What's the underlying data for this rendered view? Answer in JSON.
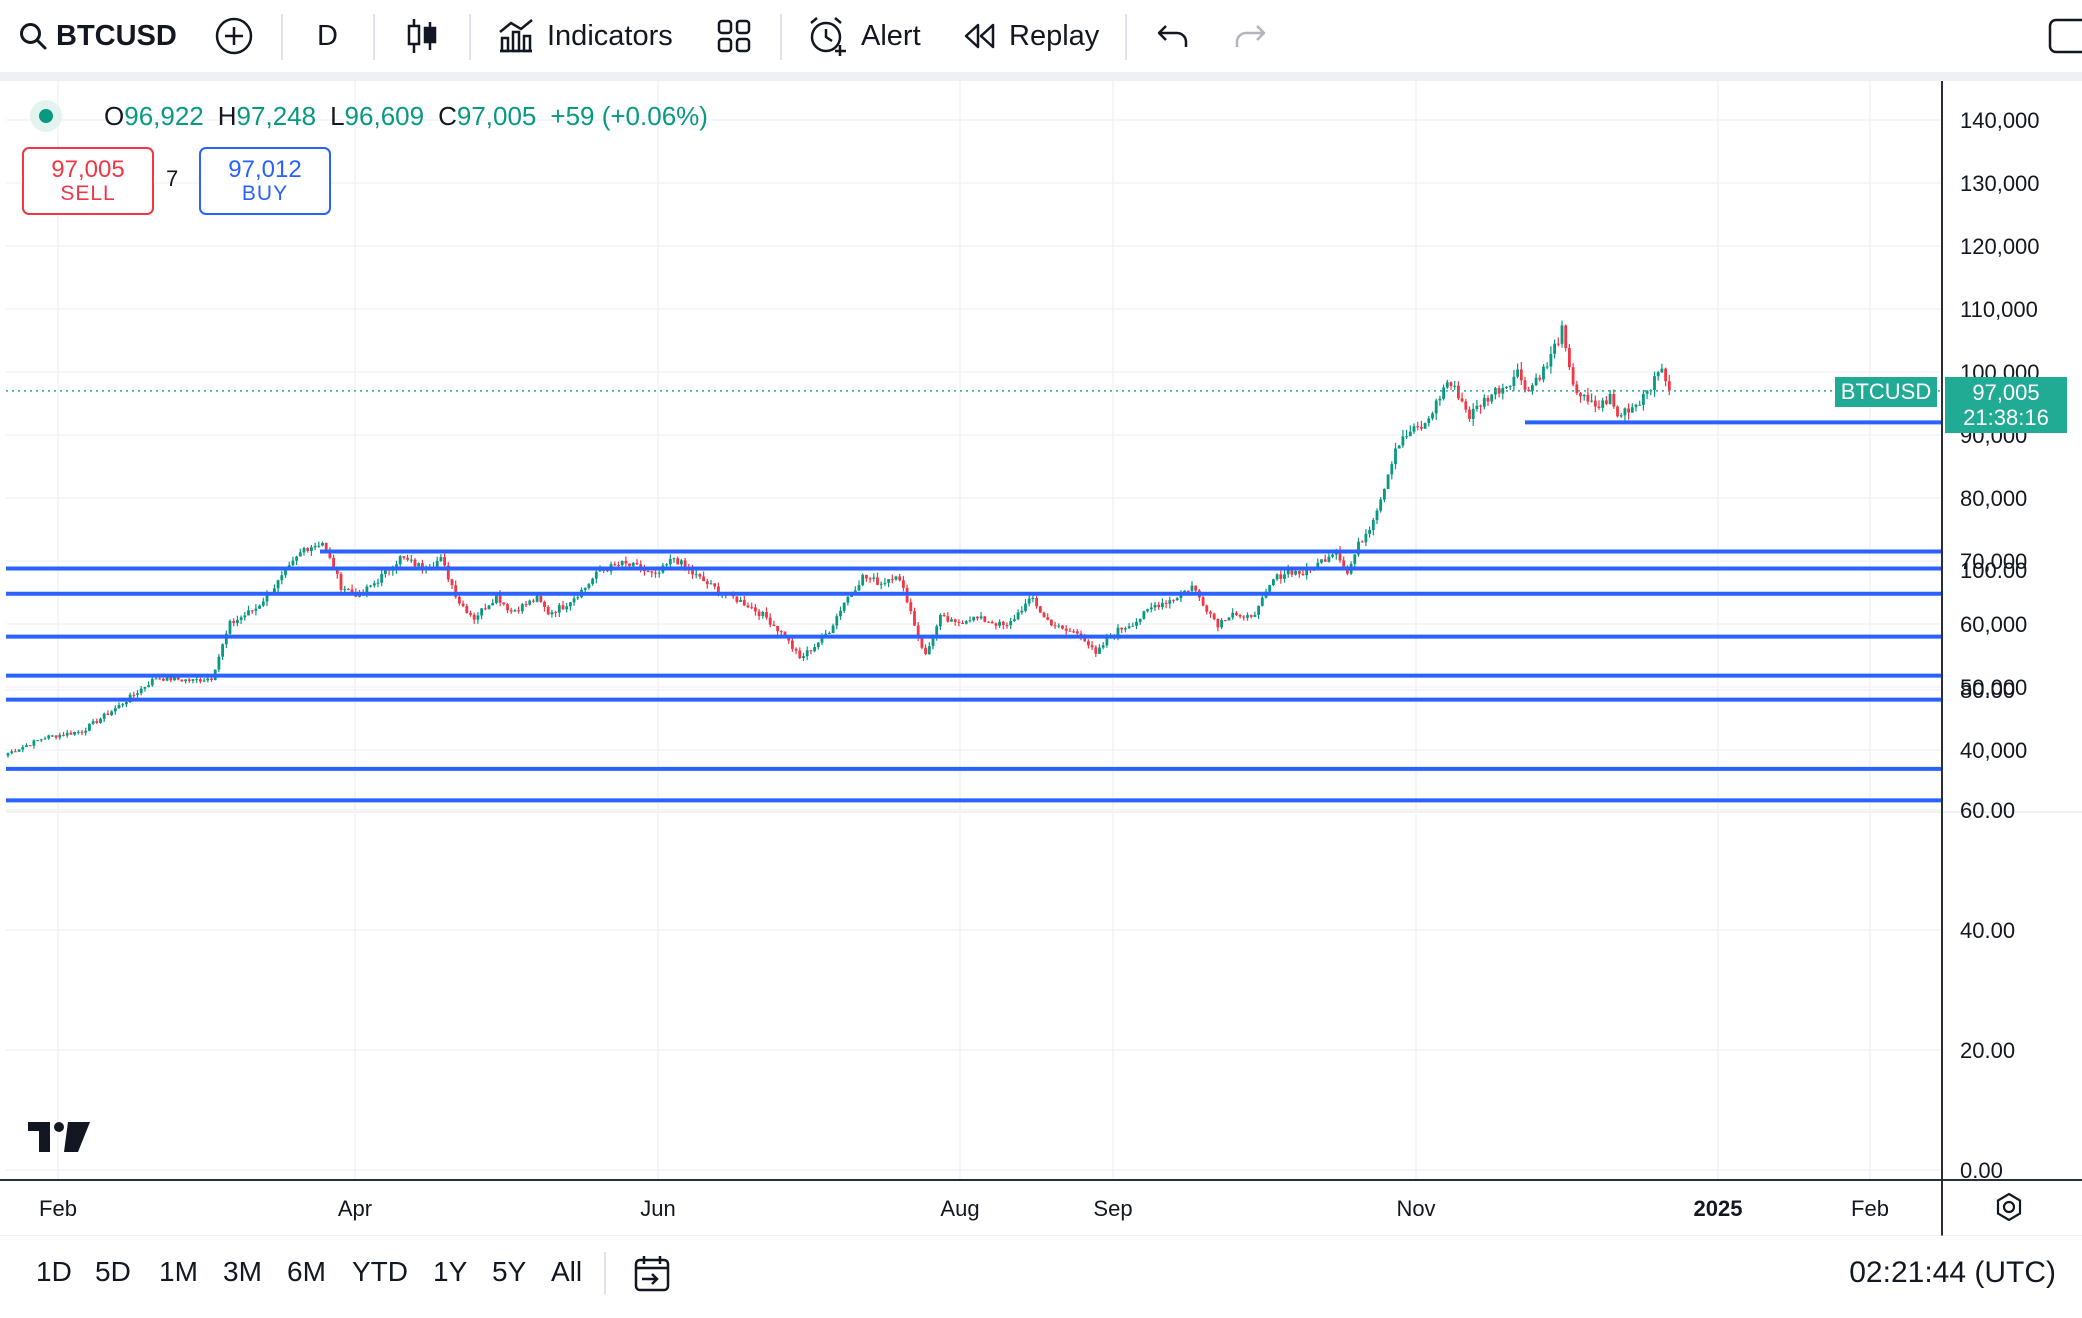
{
  "toolbar": {
    "symbol": "BTCUSD",
    "interval": "D",
    "indicators_label": "Indicators",
    "alert_label": "Alert",
    "replay_label": "Replay"
  },
  "legend": {
    "o_label": "O",
    "open": "96,922",
    "h_label": "H",
    "high": "97,248",
    "l_label": "L",
    "low": "96,609",
    "c_label": "C",
    "close": "97,005",
    "change": "+59 (+0.06%)"
  },
  "trade": {
    "sell_price": "97,005",
    "sell_label": "SELL",
    "spread": "7",
    "buy_price": "97,012",
    "buy_label": "BUY"
  },
  "price_tag": {
    "symbol": "BTCUSD",
    "price": "97,005",
    "countdown": "21:38:16"
  },
  "bottom": {
    "ranges": [
      "1D",
      "5D",
      "1M",
      "3M",
      "6M",
      "YTD",
      "1Y",
      "5Y",
      "All"
    ],
    "clock": "02:21:44 (UTC)"
  },
  "colors": {
    "up": "#089981",
    "down": "#f23645",
    "lines": "#2962ff",
    "accent": "#22ab94"
  },
  "chart_data": {
    "type": "candlestick",
    "price_axis": {
      "ticks": [
        "140,000",
        "130,000",
        "120,000",
        "110,000",
        "100,000",
        "90,000",
        "80,000",
        "70,000",
        "60,000",
        "50,000",
        "40,000"
      ],
      "ylim": [
        31000,
        143000
      ]
    },
    "lower_pane_axis": {
      "ticks": [
        "100.00",
        "80.00",
        "60.00",
        "40.00",
        "20.00",
        "0.00"
      ],
      "ylim": [
        0,
        115
      ]
    },
    "x_axis": {
      "ticks": [
        {
          "label": "Feb",
          "bold": false
        },
        {
          "label": "Apr",
          "bold": false
        },
        {
          "label": "Jun",
          "bold": false
        },
        {
          "label": "Aug",
          "bold": false
        },
        {
          "label": "Sep",
          "bold": false
        },
        {
          "label": "Nov",
          "bold": false
        },
        {
          "label": "2025",
          "bold": true
        },
        {
          "label": "Feb",
          "bold": false
        }
      ]
    },
    "horizontal_levels": [
      {
        "price": 71500,
        "from": "Mar 24"
      },
      {
        "price": 68800,
        "from": "start"
      },
      {
        "price": 64800,
        "from": "start"
      },
      {
        "price": 58000,
        "from": "start"
      },
      {
        "price": 51800,
        "from": "start"
      },
      {
        "price": 48000,
        "from": "start"
      },
      {
        "price": 37000,
        "from": "start"
      },
      {
        "price": 32000,
        "from": "start"
      },
      {
        "price": 92000,
        "from": "Nov 22"
      }
    ],
    "last_price": 97005,
    "grid": true,
    "price_path": [
      [
        0,
        39500
      ],
      [
        10,
        42000
      ],
      [
        20,
        43000
      ],
      [
        30,
        47000
      ],
      [
        40,
        51500
      ],
      [
        50,
        51000
      ],
      [
        55,
        51500
      ],
      [
        60,
        60000
      ],
      [
        67,
        62500
      ],
      [
        75,
        68000
      ],
      [
        80,
        72000
      ],
      [
        85,
        73000
      ],
      [
        90,
        66000
      ],
      [
        95,
        64500
      ],
      [
        100,
        67000
      ],
      [
        106,
        70500
      ],
      [
        112,
        69000
      ],
      [
        117,
        70200
      ],
      [
        122,
        63500
      ],
      [
        126,
        61000
      ],
      [
        132,
        64500
      ],
      [
        136,
        62000
      ],
      [
        143,
        64000
      ],
      [
        146,
        61800
      ],
      [
        150,
        62800
      ],
      [
        156,
        65800
      ],
      [
        160,
        68500
      ],
      [
        166,
        69500
      ],
      [
        170,
        69000
      ],
      [
        175,
        67500
      ],
      [
        180,
        70500
      ],
      [
        185,
        68000
      ],
      [
        190,
        66000
      ],
      [
        195,
        64500
      ],
      [
        200,
        63000
      ],
      [
        205,
        61000
      ],
      [
        210,
        58000
      ],
      [
        214,
        54500
      ],
      [
        218,
        56500
      ],
      [
        222,
        59000
      ],
      [
        226,
        63500
      ],
      [
        231,
        67500
      ],
      [
        236,
        66500
      ],
      [
        240,
        68000
      ],
      [
        243,
        64000
      ],
      [
        246,
        58000
      ],
      [
        248,
        55000
      ],
      [
        252,
        61000
      ],
      [
        256,
        60000
      ],
      [
        260,
        61000
      ],
      [
        265,
        60500
      ],
      [
        270,
        59500
      ],
      [
        274,
        62500
      ],
      [
        277,
        64000
      ],
      [
        280,
        61000
      ],
      [
        285,
        59000
      ],
      [
        290,
        58500
      ],
      [
        294,
        55000
      ],
      [
        297,
        57500
      ],
      [
        300,
        59000
      ],
      [
        305,
        60500
      ],
      [
        310,
        63000
      ],
      [
        315,
        64000
      ],
      [
        320,
        66000
      ],
      [
        324,
        62500
      ],
      [
        327,
        60000
      ],
      [
        331,
        62000
      ],
      [
        334,
        60500
      ],
      [
        338,
        62500
      ],
      [
        342,
        67000
      ],
      [
        346,
        68500
      ],
      [
        350,
        68000
      ],
      [
        353,
        69000
      ],
      [
        356,
        70500
      ],
      [
        359,
        72000
      ],
      [
        362,
        68000
      ],
      [
        365,
        72500
      ],
      [
        368,
        75500
      ],
      [
        371,
        80000
      ],
      [
        375,
        88000
      ],
      [
        379,
        90500
      ],
      [
        383,
        91500
      ],
      [
        386,
        95000
      ],
      [
        389,
        98500
      ],
      [
        392,
        96500
      ],
      [
        395,
        93000
      ],
      [
        398,
        95000
      ],
      [
        402,
        97000
      ],
      [
        405,
        98000
      ],
      [
        408,
        100000
      ],
      [
        411,
        97000
      ],
      [
        413,
        99000
      ],
      [
        416,
        101000
      ],
      [
        418,
        104000
      ],
      [
        420,
        106500
      ],
      [
        422,
        100000
      ],
      [
        424,
        97000
      ],
      [
        427,
        95000
      ],
      [
        430,
        94500
      ],
      [
        433,
        96000
      ],
      [
        435,
        92800
      ],
      [
        437,
        94000
      ],
      [
        439,
        94500
      ],
      [
        441,
        95500
      ],
      [
        443,
        97500
      ],
      [
        445,
        98500
      ],
      [
        447,
        101000
      ],
      [
        449,
        97005
      ]
    ]
  }
}
